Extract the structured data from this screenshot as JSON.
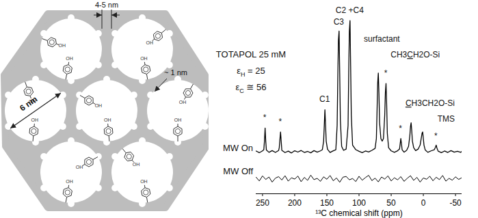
{
  "diagram": {
    "labels": {
      "wall": "4-5 nm",
      "micropore": "~ 1 nm",
      "pore": "6 nm"
    },
    "group": "OH"
  },
  "chart_data": {
    "type": "line",
    "x_label": "¹³C chemical shift (ppm)",
    "xlim": [
      260,
      -60
    ],
    "xticks": [
      250,
      200,
      150,
      100,
      50,
      0,
      -50
    ],
    "tick_labels": "x",
    "notes": [
      {
        "text": "TOTAPOL 25 mM"
      },
      {
        "symbol": "ε",
        "subscript": "H",
        "after": " = 25"
      },
      {
        "symbol": "ε",
        "subscript": "C",
        "after": " ≅ 56"
      }
    ],
    "series": [
      {
        "name": "MW On",
        "color": "#000000",
        "line_style": "solid",
        "ylim": [
          -5,
          105
        ],
        "x": [
          260,
          255,
          250,
          248,
          247,
          246,
          245,
          244,
          240,
          235,
          230,
          225,
          224,
          223,
          222,
          221,
          220,
          215,
          210,
          205,
          200,
          195,
          190,
          185,
          180,
          175,
          170,
          165,
          160,
          157,
          155,
          154,
          153,
          152,
          151,
          149,
          145,
          140,
          136,
          134,
          133,
          132,
          131,
          130,
          129,
          127,
          124,
          120,
          117,
          116,
          115,
          114,
          113,
          112,
          110,
          105,
          100,
          95,
          90,
          85,
          80,
          75,
          73,
          72,
          71,
          70,
          69,
          68,
          66,
          64,
          62,
          60,
          59,
          58,
          57,
          56,
          54,
          50,
          45,
          40,
          37,
          36,
          35,
          34,
          33,
          30,
          26,
          23,
          21,
          20,
          19,
          18,
          17,
          15,
          12,
          8,
          5,
          3,
          2,
          1,
          0,
          -1,
          -3,
          -7,
          -12,
          -17,
          -19,
          -20,
          -21,
          -23,
          -28,
          -33,
          -38,
          -43,
          -48,
          -53,
          -58,
          -60
        ],
        "values": [
          0.5,
          -0.8,
          0.6,
          1.5,
          8,
          18,
          8,
          1.2,
          -0.5,
          0.8,
          -0.6,
          0.9,
          3,
          9,
          15,
          8,
          1,
          -0.7,
          0.4,
          -1,
          0.7,
          -0.3,
          0.9,
          -0.6,
          0.2,
          -0.9,
          0.8,
          -0.4,
          0.6,
          1.5,
          8,
          20,
          32,
          20,
          8,
          1.8,
          -0.6,
          0.7,
          1.5,
          20,
          55,
          85,
          92,
          60,
          24,
          4,
          1,
          2,
          20,
          60,
          92,
          100,
          65,
          28,
          5,
          1.5,
          0.3,
          -0.8,
          0.5,
          -0.2,
          1,
          2.5,
          10,
          30,
          52,
          60,
          44,
          22,
          10,
          8,
          10,
          28,
          45,
          52,
          36,
          14,
          3,
          0.6,
          -0.5,
          0.7,
          2,
          6,
          10,
          6,
          1.5,
          -0.4,
          1,
          4,
          12,
          19,
          22,
          16,
          8,
          3,
          0.8,
          2,
          5,
          11,
          14,
          15,
          10,
          5,
          1.2,
          -0.5,
          0.6,
          1.5,
          3.5,
          5,
          3,
          0.4,
          -0.8,
          0.5,
          -0.6,
          0.8,
          -0.4,
          0.3,
          -0.5,
          0.2
        ],
        "annotations": [
          {
            "text": "*",
            "x": 246,
            "y": 22
          },
          {
            "text": "*",
            "x": 222,
            "y": 19
          },
          {
            "text": "C1",
            "x": 153,
            "y": 36
          },
          {
            "text": "C3",
            "x": 131,
            "y": 95
          },
          {
            "text": "C2 +C4",
            "x": 114,
            "y": 104
          },
          {
            "text": "surfactant",
            "x": 64,
            "y": 82
          },
          {
            "text": "*",
            "x": 58,
            "y": 56
          },
          {
            "before": "CH3",
            "underlined": "C",
            "after": "H2O-Si",
            "x": 12,
            "y": 70
          },
          {
            "text": "*",
            "x": 35,
            "y": 14
          },
          {
            "underlined": "C",
            "after": "H3CH2O-Si",
            "x": -11,
            "y": 33
          },
          {
            "text": "TMS",
            "x": -36,
            "y": 21
          },
          {
            "text": "*",
            "x": -20,
            "y": 8
          }
        ]
      },
      {
        "name": "MW Off",
        "color": "#000000",
        "line_style": "solid",
        "ylim": [
          -8,
          8
        ],
        "x": [
          260,
          255,
          250,
          245,
          240,
          235,
          230,
          225,
          220,
          215,
          210,
          205,
          200,
          195,
          190,
          185,
          180,
          175,
          170,
          165,
          160,
          155,
          150,
          145,
          140,
          135,
          130,
          125,
          120,
          115,
          110,
          105,
          100,
          95,
          90,
          85,
          80,
          75,
          70,
          65,
          60,
          55,
          50,
          45,
          40,
          35,
          30,
          25,
          20,
          15,
          10,
          5,
          0,
          -5,
          -10,
          -15,
          -20,
          -25,
          -30,
          -35,
          -40,
          -45,
          -50,
          -55,
          -60
        ],
        "values": [
          0.8,
          -1.2,
          1.5,
          -0.4,
          0.9,
          -1.8,
          0.3,
          1.1,
          -0.7,
          1.6,
          -1.3,
          0.5,
          -0.2,
          1.4,
          -1.6,
          0.7,
          -0.9,
          1.9,
          -0.5,
          0.2,
          -1.4,
          1.0,
          -0.3,
          1.7,
          -1.1,
          0.4,
          -1.9,
          0.8,
          1.2,
          -0.6,
          0.1,
          -1.5,
          1.3,
          -0.8,
          0.6,
          1.8,
          -1.0,
          0.3,
          -1.7,
          0.9,
          -0.2,
          1.5,
          -1.2,
          0.5,
          -0.6,
          1.1,
          -1.4,
          0.2,
          1.6,
          -0.9,
          0.7,
          -1.8,
          0.4,
          -0.3,
          1.3,
          -1.1,
          0.8,
          -0.5,
          1.7,
          -1.3,
          0.2,
          -0.8,
          1.0,
          -0.4,
          0.6
        ]
      }
    ]
  }
}
